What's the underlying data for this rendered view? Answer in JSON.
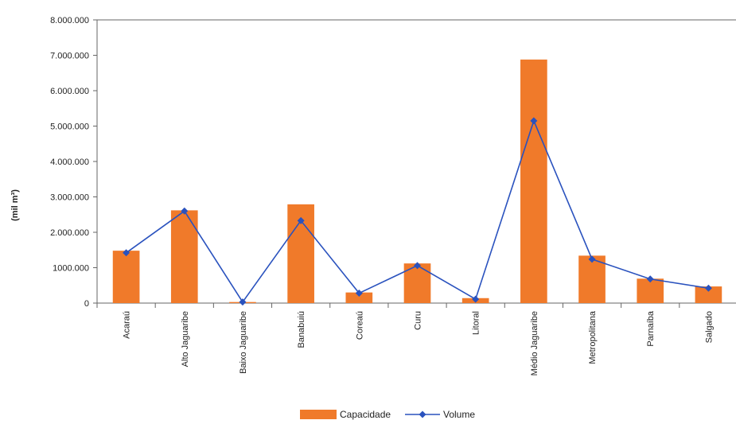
{
  "chart_data": {
    "type": "bar",
    "ylabel": "(mil m³)",
    "xlabel": "",
    "ylim": [
      0,
      8000000
    ],
    "ytick_labels": [
      "0",
      "1000.000",
      "2.000.000",
      "3.000.000",
      "4.000.000",
      "5.000.000",
      "6.000.000",
      "7.000.000",
      "8.000.000"
    ],
    "ytick_values": [
      0,
      1000000,
      2000000,
      3000000,
      4000000,
      5000000,
      6000000,
      7000000,
      8000000
    ],
    "categories": [
      "Acaraú",
      "Alto Jaguaribe",
      "Baixo Jaguaribe",
      "Banabuiú",
      "Coreaú",
      "Curu",
      "Litoral",
      "Médio Jaguaribe",
      "Metropolitana",
      "Parnaíba",
      "Salgado"
    ],
    "series": [
      {
        "name": "Capacidade",
        "kind": "bar",
        "color": "#f07a2a",
        "values": [
          1480000,
          2620000,
          30000,
          2790000,
          300000,
          1120000,
          140000,
          6880000,
          1340000,
          690000,
          470000
        ]
      },
      {
        "name": "Volume",
        "kind": "line",
        "color": "#2a52be",
        "values": [
          1420000,
          2600000,
          30000,
          2330000,
          280000,
          1060000,
          110000,
          5150000,
          1240000,
          680000,
          420000
        ]
      }
    ],
    "legend": "bottom",
    "grid": false
  }
}
